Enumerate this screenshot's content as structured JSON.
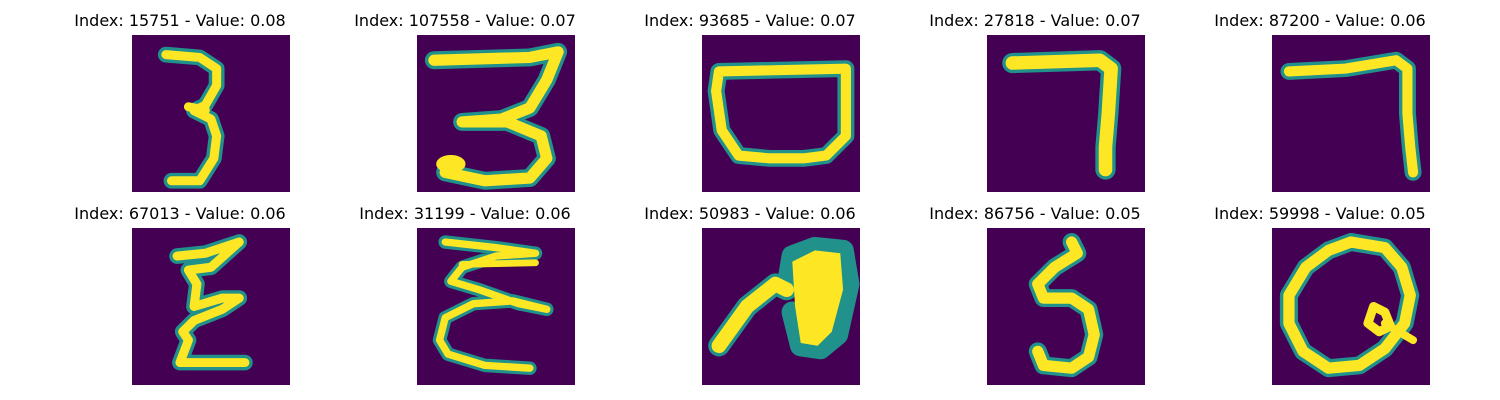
{
  "colors": {
    "background": "#440154",
    "mid": "#21918c",
    "teal": "#35b779",
    "high": "#fde725"
  },
  "panels": [
    {
      "title": "Index: 15751 - Value: 0.08",
      "image": "handwritten-digit-3"
    },
    {
      "title": "Index: 107558 - Value: 0.07",
      "image": "handwritten-digit-3"
    },
    {
      "title": "Index: 93685 - Value: 0.07",
      "image": "handwritten-bowl-shape"
    },
    {
      "title": "Index: 27818 - Value: 0.07",
      "image": "handwritten-digit-7"
    },
    {
      "title": "Index: 87200 - Value: 0.06",
      "image": "handwritten-digit-7"
    },
    {
      "title": "Index: 67013 - Value: 0.06",
      "image": "handwritten-z-shape"
    },
    {
      "title": "Index: 31199 - Value: 0.06",
      "image": "handwritten-e-shape"
    },
    {
      "title": "Index: 50983 - Value: 0.06",
      "image": "handwritten-leaf-shape"
    },
    {
      "title": "Index: 86756 - Value: 0.05",
      "image": "handwritten-digit-5"
    },
    {
      "title": "Index: 59998 - Value: 0.05",
      "image": "handwritten-digit-0"
    }
  ]
}
